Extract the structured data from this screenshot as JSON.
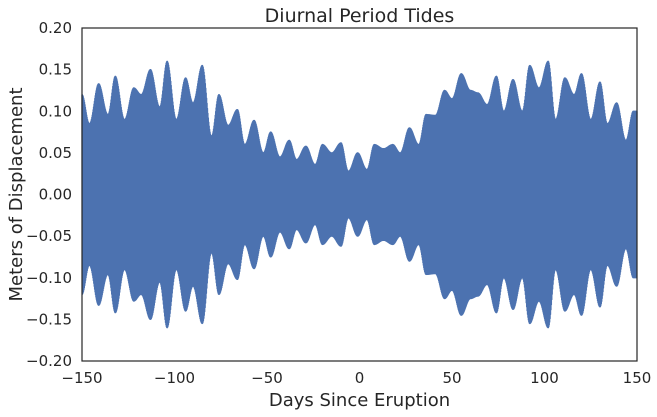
{
  "chart_data": {
    "type": "line",
    "title": "Diurnal Period Tides",
    "xlabel": "Days Since Eruption",
    "ylabel": "Meters of Displacement",
    "xlim": [
      -150,
      150
    ],
    "ylim": [
      -0.2,
      0.2
    ],
    "grid": false,
    "legend": "none",
    "series_color": "#4c72b0",
    "xticks": [
      -150,
      -100,
      -50,
      0,
      50,
      100,
      150
    ],
    "xtick_labels": [
      "−150",
      "−100",
      "−50",
      "0",
      "50",
      "100",
      "150"
    ],
    "yticks": [
      0.2,
      0.15,
      0.1,
      0.05,
      0.0,
      -0.05,
      -0.1,
      -0.15,
      -0.2
    ],
    "ytick_labels": [
      "0.20",
      "0.15",
      "0.10",
      "0.05",
      "0.00",
      "−0.05",
      "−0.10",
      "−0.15",
      "−0.20"
    ],
    "series": [
      {
        "envelope_days": [
          -150,
          -146,
          -141,
          -136,
          -132,
          -127,
          -122,
          -118,
          -113,
          -108,
          -104,
          -99,
          -94,
          -90,
          -85,
          -80,
          -76,
          -71,
          -66,
          -62,
          -57,
          -52,
          -48,
          -43,
          -38,
          -34,
          -29,
          -24,
          -20,
          -15,
          -10,
          -6,
          -1,
          4,
          8,
          13,
          18,
          22,
          27,
          32,
          36,
          41,
          46,
          50,
          55,
          60,
          64,
          69,
          74,
          78,
          83,
          88,
          92,
          97,
          102,
          106,
          111,
          116,
          120,
          125,
          130,
          134,
          139,
          144,
          148
        ],
        "envelope_amplitude": [
          0.12,
          0.085,
          0.133,
          0.096,
          0.142,
          0.09,
          0.128,
          0.12,
          0.15,
          0.105,
          0.16,
          0.09,
          0.14,
          0.11,
          0.155,
          0.07,
          0.12,
          0.083,
          0.102,
          0.06,
          0.089,
          0.05,
          0.075,
          0.045,
          0.065,
          0.042,
          0.058,
          0.036,
          0.06,
          0.05,
          0.062,
          0.028,
          0.05,
          0.03,
          0.06,
          0.055,
          0.06,
          0.05,
          0.08,
          0.06,
          0.096,
          0.095,
          0.125,
          0.115,
          0.145,
          0.125,
          0.122,
          0.108,
          0.142,
          0.1,
          0.138,
          0.1,
          0.155,
          0.128,
          0.16,
          0.09,
          0.14,
          0.12,
          0.145,
          0.09,
          0.135,
          0.085,
          0.11,
          0.065,
          0.1
        ]
      }
    ]
  }
}
